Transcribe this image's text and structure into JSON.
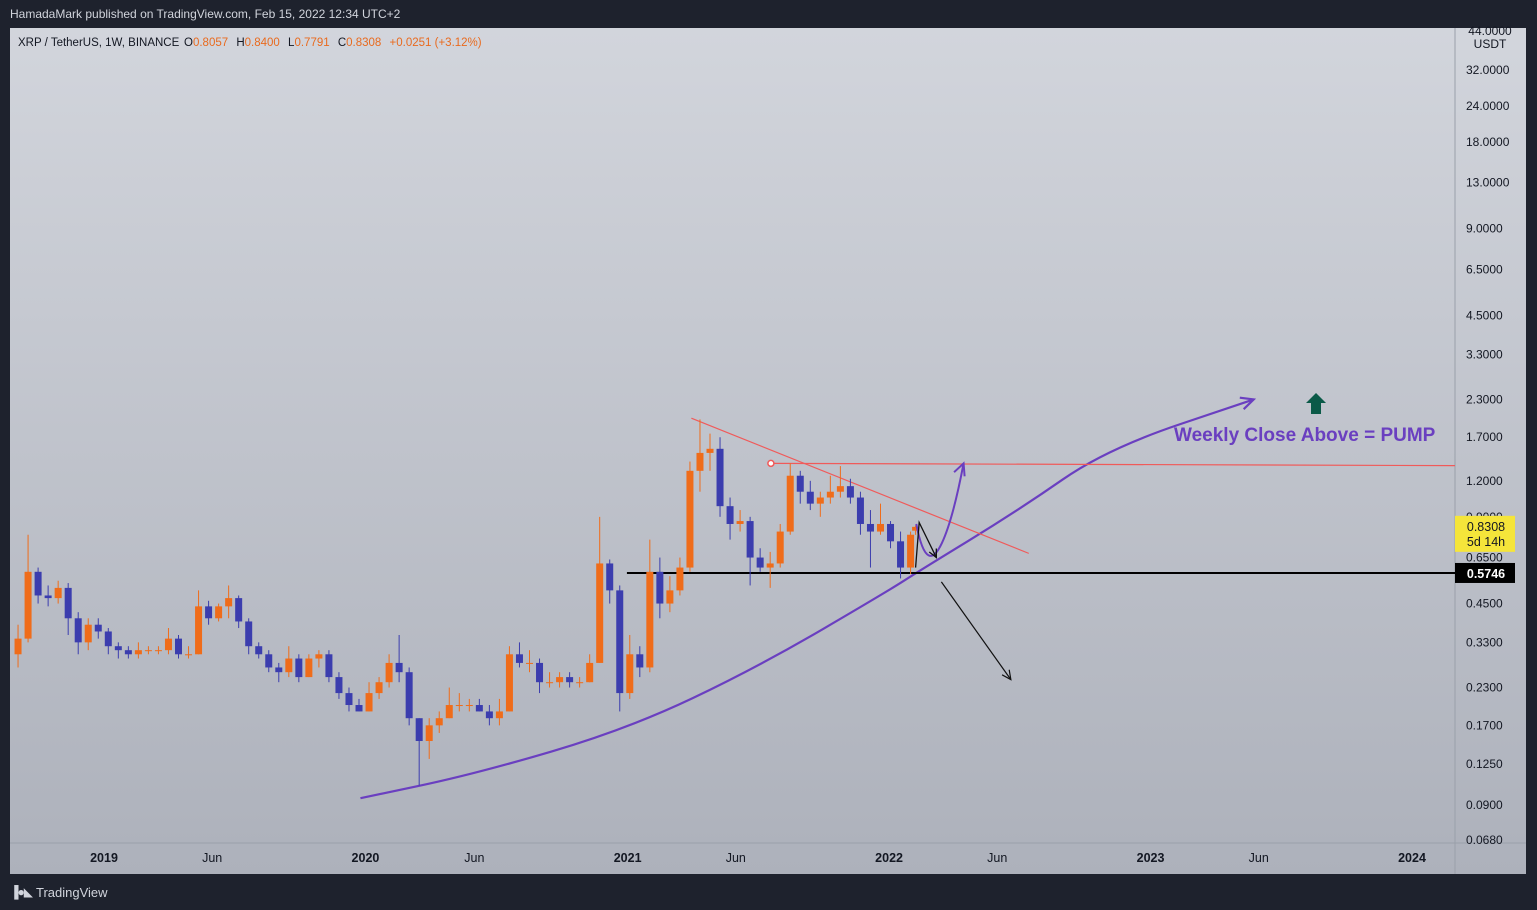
{
  "header": {
    "publisher_line": "HamadaMark published on TradingView.com, Feb 15, 2022 12:34 UTC+2"
  },
  "footer": {
    "brand": "TradingView"
  },
  "colors": {
    "background": "#1e222d",
    "plot_top": "#d2d5dc",
    "plot_bottom": "#adb1bb",
    "up_candle": "#ef6c1a",
    "down_candle": "#3b3dae",
    "annotation_purple": "#6a3fc0",
    "trendline_red": "#f05a5a",
    "price_tag_bg": "#f5e53a",
    "support_tag_bg": "#000000",
    "up_arrow_green": "#0b5a48"
  },
  "chart_data": {
    "type": "candlestick",
    "symbol_line": {
      "name": "XRP / TetherUS, 1W, BINANCE",
      "o_label": "O",
      "o_value": "0.8057",
      "h_label": "H",
      "h_value": "0.8400",
      "l_label": "L",
      "l_value": "0.7791",
      "c_label": "C",
      "c_value": "0.8308",
      "change": "+0.0251 (+3.12%)"
    },
    "y_axis": {
      "scale": "log",
      "unit": "USDT",
      "top_cut_label": "44.0000",
      "ticks": [
        "32.0000",
        "24.0000",
        "18.0000",
        "13.0000",
        "9.0000",
        "6.5000",
        "4.5000",
        "3.3000",
        "2.3000",
        "1.7000",
        "1.2000",
        "0.9000",
        "0.6500",
        "0.4500",
        "0.3300",
        "0.2300",
        "0.1700",
        "0.1250",
        "0.0900",
        "0.0680"
      ],
      "tick_values": [
        32,
        24,
        18,
        13,
        9,
        6.5,
        4.5,
        3.3,
        2.3,
        1.7,
        1.2,
        0.9,
        0.65,
        0.45,
        0.33,
        0.23,
        0.17,
        0.125,
        0.09,
        0.068
      ],
      "range": [
        0.068,
        44
      ]
    },
    "x_axis": {
      "ticks": [
        "2019",
        "Jun",
        "2020",
        "Jun",
        "2021",
        "Jun",
        "2022",
        "Jun",
        "2023",
        "Jun",
        "2024"
      ],
      "tick_dates": [
        "2019-01-01",
        "2019-06-01",
        "2020-01-01",
        "2020-06-01",
        "2021-01-01",
        "2021-06-01",
        "2022-01-01",
        "2022-06-01",
        "2023-01-01",
        "2023-06-01",
        "2024-01-01"
      ],
      "bold": [
        true,
        false,
        true,
        false,
        true,
        false,
        true,
        false,
        true,
        false,
        true
      ],
      "range": [
        "2018-09-01",
        "2024-03-01"
      ]
    },
    "price_tag": {
      "value": "0.8308",
      "countdown": "5d 14h",
      "price": 0.8308
    },
    "support_tag": {
      "value": "0.5746",
      "price": 0.5746
    },
    "annotation_text": "Weekly Close Above = PUMP",
    "drawings": {
      "support_line": {
        "from": "2020-12-31",
        "to": "2024-03-01",
        "price": 0.5746
      },
      "descending_trendline": {
        "from": [
          "2021-03-31",
          1.98
        ],
        "to": [
          "2022-07-15",
          0.672
        ]
      },
      "horizontal_resistance": {
        "from": [
          "2021-07-20",
          1.38
        ],
        "to": [
          "2024-03-01",
          1.355
        ]
      },
      "curve_support": [
        [
          "2019-12-25",
          0.095
        ],
        [
          "2020-06-01",
          0.115
        ],
        [
          "2021-01-01",
          0.165
        ],
        [
          "2021-07-01",
          0.27
        ],
        [
          "2022-01-01",
          0.5
        ],
        [
          "2022-02-10",
          0.58
        ],
        [
          "2022-07-01",
          0.95
        ],
        [
          "2022-11-01",
          1.55
        ],
        [
          "2023-05-25",
          2.3
        ]
      ],
      "scenario_up": [
        [
          "2022-02-08",
          0.85
        ],
        [
          "2022-03-01",
          0.7
        ],
        [
          "2022-04-01",
          0.98
        ],
        [
          "2022-04-15",
          1.38
        ]
      ],
      "scenario_down": [
        [
          "2022-02-07",
          0.6
        ],
        [
          "2022-02-12",
          0.86
        ],
        [
          "2022-03-08",
          0.65
        ]
      ],
      "bearish_arrow": [
        [
          "2022-03-15",
          0.535
        ],
        [
          "2022-06-20",
          0.245
        ]
      ],
      "pump_arrow": {
        "date": "2023-08-20",
        "price": 2.2
      },
      "marker_dot": {
        "date": "2021-07-20",
        "price": 1.38
      }
    },
    "candles": [
      {
        "d": "2018-09-03",
        "o": 0.3,
        "h": 0.38,
        "l": 0.27,
        "c": 0.34
      },
      {
        "d": "2018-09-17",
        "o": 0.34,
        "h": 0.78,
        "l": 0.33,
        "c": 0.58
      },
      {
        "d": "2018-10-01",
        "o": 0.58,
        "h": 0.6,
        "l": 0.45,
        "c": 0.48
      },
      {
        "d": "2018-10-15",
        "o": 0.48,
        "h": 0.52,
        "l": 0.44,
        "c": 0.47
      },
      {
        "d": "2018-10-29",
        "o": 0.47,
        "h": 0.54,
        "l": 0.45,
        "c": 0.51
      },
      {
        "d": "2018-11-12",
        "o": 0.51,
        "h": 0.53,
        "l": 0.35,
        "c": 0.4
      },
      {
        "d": "2018-11-26",
        "o": 0.4,
        "h": 0.42,
        "l": 0.3,
        "c": 0.33
      },
      {
        "d": "2018-12-10",
        "o": 0.33,
        "h": 0.4,
        "l": 0.31,
        "c": 0.38
      },
      {
        "d": "2018-12-24",
        "o": 0.38,
        "h": 0.4,
        "l": 0.34,
        "c": 0.36
      },
      {
        "d": "2019-01-07",
        "o": 0.36,
        "h": 0.37,
        "l": 0.3,
        "c": 0.32
      },
      {
        "d": "2019-01-21",
        "o": 0.32,
        "h": 0.33,
        "l": 0.29,
        "c": 0.31
      },
      {
        "d": "2019-02-04",
        "o": 0.31,
        "h": 0.32,
        "l": 0.29,
        "c": 0.3
      },
      {
        "d": "2019-02-18",
        "o": 0.3,
        "h": 0.33,
        "l": 0.29,
        "c": 0.31
      },
      {
        "d": "2019-03-04",
        "o": 0.31,
        "h": 0.32,
        "l": 0.3,
        "c": 0.31
      },
      {
        "d": "2019-03-18",
        "o": 0.31,
        "h": 0.32,
        "l": 0.3,
        "c": 0.31
      },
      {
        "d": "2019-04-01",
        "o": 0.31,
        "h": 0.37,
        "l": 0.3,
        "c": 0.34
      },
      {
        "d": "2019-04-15",
        "o": 0.34,
        "h": 0.35,
        "l": 0.29,
        "c": 0.3
      },
      {
        "d": "2019-04-29",
        "o": 0.3,
        "h": 0.32,
        "l": 0.29,
        "c": 0.3
      },
      {
        "d": "2019-05-13",
        "o": 0.3,
        "h": 0.5,
        "l": 0.3,
        "c": 0.44
      },
      {
        "d": "2019-05-27",
        "o": 0.44,
        "h": 0.46,
        "l": 0.38,
        "c": 0.4
      },
      {
        "d": "2019-06-10",
        "o": 0.4,
        "h": 0.45,
        "l": 0.39,
        "c": 0.44
      },
      {
        "d": "2019-06-24",
        "o": 0.44,
        "h": 0.52,
        "l": 0.4,
        "c": 0.47
      },
      {
        "d": "2019-07-08",
        "o": 0.47,
        "h": 0.48,
        "l": 0.37,
        "c": 0.39
      },
      {
        "d": "2019-07-22",
        "o": 0.39,
        "h": 0.4,
        "l": 0.3,
        "c": 0.32
      },
      {
        "d": "2019-08-05",
        "o": 0.32,
        "h": 0.33,
        "l": 0.29,
        "c": 0.3
      },
      {
        "d": "2019-08-19",
        "o": 0.3,
        "h": 0.31,
        "l": 0.26,
        "c": 0.27
      },
      {
        "d": "2019-09-02",
        "o": 0.27,
        "h": 0.28,
        "l": 0.24,
        "c": 0.26
      },
      {
        "d": "2019-09-16",
        "o": 0.26,
        "h": 0.32,
        "l": 0.25,
        "c": 0.29
      },
      {
        "d": "2019-09-30",
        "o": 0.29,
        "h": 0.3,
        "l": 0.24,
        "c": 0.25
      },
      {
        "d": "2019-10-14",
        "o": 0.25,
        "h": 0.3,
        "l": 0.25,
        "c": 0.29
      },
      {
        "d": "2019-10-28",
        "o": 0.29,
        "h": 0.31,
        "l": 0.27,
        "c": 0.3
      },
      {
        "d": "2019-11-11",
        "o": 0.3,
        "h": 0.31,
        "l": 0.24,
        "c": 0.25
      },
      {
        "d": "2019-11-25",
        "o": 0.25,
        "h": 0.26,
        "l": 0.21,
        "c": 0.22
      },
      {
        "d": "2019-12-09",
        "o": 0.22,
        "h": 0.23,
        "l": 0.19,
        "c": 0.2
      },
      {
        "d": "2019-12-23",
        "o": 0.2,
        "h": 0.21,
        "l": 0.19,
        "c": 0.19
      },
      {
        "d": "2020-01-06",
        "o": 0.19,
        "h": 0.24,
        "l": 0.19,
        "c": 0.22
      },
      {
        "d": "2020-01-20",
        "o": 0.22,
        "h": 0.25,
        "l": 0.21,
        "c": 0.24
      },
      {
        "d": "2020-02-03",
        "o": 0.24,
        "h": 0.3,
        "l": 0.23,
        "c": 0.28
      },
      {
        "d": "2020-02-17",
        "o": 0.28,
        "h": 0.35,
        "l": 0.24,
        "c": 0.26
      },
      {
        "d": "2020-03-02",
        "o": 0.26,
        "h": 0.27,
        "l": 0.17,
        "c": 0.18
      },
      {
        "d": "2020-03-16",
        "o": 0.18,
        "h": 0.18,
        "l": 0.105,
        "c": 0.15
      },
      {
        "d": "2020-03-30",
        "o": 0.15,
        "h": 0.18,
        "l": 0.13,
        "c": 0.17
      },
      {
        "d": "2020-04-13",
        "o": 0.17,
        "h": 0.19,
        "l": 0.16,
        "c": 0.18
      },
      {
        "d": "2020-04-27",
        "o": 0.18,
        "h": 0.23,
        "l": 0.18,
        "c": 0.2
      },
      {
        "d": "2020-05-11",
        "o": 0.2,
        "h": 0.22,
        "l": 0.19,
        "c": 0.2
      },
      {
        "d": "2020-05-25",
        "o": 0.2,
        "h": 0.21,
        "l": 0.19,
        "c": 0.2
      },
      {
        "d": "2020-06-08",
        "o": 0.2,
        "h": 0.21,
        "l": 0.19,
        "c": 0.19
      },
      {
        "d": "2020-06-22",
        "o": 0.19,
        "h": 0.2,
        "l": 0.17,
        "c": 0.18
      },
      {
        "d": "2020-07-06",
        "o": 0.18,
        "h": 0.21,
        "l": 0.17,
        "c": 0.19
      },
      {
        "d": "2020-07-20",
        "o": 0.19,
        "h": 0.32,
        "l": 0.19,
        "c": 0.3
      },
      {
        "d": "2020-08-03",
        "o": 0.3,
        "h": 0.33,
        "l": 0.27,
        "c": 0.28
      },
      {
        "d": "2020-08-17",
        "o": 0.28,
        "h": 0.31,
        "l": 0.26,
        "c": 0.28
      },
      {
        "d": "2020-08-31",
        "o": 0.28,
        "h": 0.29,
        "l": 0.22,
        "c": 0.24
      },
      {
        "d": "2020-09-14",
        "o": 0.24,
        "h": 0.26,
        "l": 0.23,
        "c": 0.24
      },
      {
        "d": "2020-09-28",
        "o": 0.24,
        "h": 0.26,
        "l": 0.23,
        "c": 0.25
      },
      {
        "d": "2020-10-12",
        "o": 0.25,
        "h": 0.26,
        "l": 0.23,
        "c": 0.24
      },
      {
        "d": "2020-10-26",
        "o": 0.24,
        "h": 0.25,
        "l": 0.23,
        "c": 0.24
      },
      {
        "d": "2020-11-09",
        "o": 0.24,
        "h": 0.3,
        "l": 0.24,
        "c": 0.28
      },
      {
        "d": "2020-11-23",
        "o": 0.28,
        "h": 0.9,
        "l": 0.28,
        "c": 0.62
      },
      {
        "d": "2020-12-07",
        "o": 0.62,
        "h": 0.64,
        "l": 0.45,
        "c": 0.5
      },
      {
        "d": "2020-12-21",
        "o": 0.5,
        "h": 0.52,
        "l": 0.19,
        "c": 0.22
      },
      {
        "d": "2021-01-04",
        "o": 0.22,
        "h": 0.35,
        "l": 0.21,
        "c": 0.3
      },
      {
        "d": "2021-01-18",
        "o": 0.3,
        "h": 0.32,
        "l": 0.25,
        "c": 0.27
      },
      {
        "d": "2021-02-01",
        "o": 0.27,
        "h": 0.75,
        "l": 0.26,
        "c": 0.58
      },
      {
        "d": "2021-02-15",
        "o": 0.58,
        "h": 0.65,
        "l": 0.4,
        "c": 0.45
      },
      {
        "d": "2021-03-01",
        "o": 0.45,
        "h": 0.56,
        "l": 0.42,
        "c": 0.5
      },
      {
        "d": "2021-03-15",
        "o": 0.5,
        "h": 0.65,
        "l": 0.48,
        "c": 0.6
      },
      {
        "d": "2021-03-29",
        "o": 0.6,
        "h": 1.4,
        "l": 0.58,
        "c": 1.3
      },
      {
        "d": "2021-04-12",
        "o": 1.3,
        "h": 1.96,
        "l": 1.1,
        "c": 1.5
      },
      {
        "d": "2021-04-26",
        "o": 1.5,
        "h": 1.75,
        "l": 1.3,
        "c": 1.55
      },
      {
        "d": "2021-05-10",
        "o": 1.55,
        "h": 1.7,
        "l": 0.9,
        "c": 0.98
      },
      {
        "d": "2021-05-24",
        "o": 0.98,
        "h": 1.05,
        "l": 0.75,
        "c": 0.85
      },
      {
        "d": "2021-06-07",
        "o": 0.85,
        "h": 0.95,
        "l": 0.8,
        "c": 0.87
      },
      {
        "d": "2021-06-21",
        "o": 0.87,
        "h": 0.9,
        "l": 0.52,
        "c": 0.65
      },
      {
        "d": "2021-07-05",
        "o": 0.65,
        "h": 0.7,
        "l": 0.58,
        "c": 0.6
      },
      {
        "d": "2021-07-19",
        "o": 0.6,
        "h": 0.68,
        "l": 0.51,
        "c": 0.62
      },
      {
        "d": "2021-08-02",
        "o": 0.62,
        "h": 0.85,
        "l": 0.6,
        "c": 0.8
      },
      {
        "d": "2021-08-16",
        "o": 0.8,
        "h": 1.38,
        "l": 0.78,
        "c": 1.25
      },
      {
        "d": "2021-08-30",
        "o": 1.25,
        "h": 1.3,
        "l": 1.0,
        "c": 1.1
      },
      {
        "d": "2021-09-13",
        "o": 1.1,
        "h": 1.2,
        "l": 0.95,
        "c": 1.0
      },
      {
        "d": "2021-09-27",
        "o": 1.0,
        "h": 1.1,
        "l": 0.9,
        "c": 1.05
      },
      {
        "d": "2021-10-11",
        "o": 1.05,
        "h": 1.25,
        "l": 1.0,
        "c": 1.1
      },
      {
        "d": "2021-10-25",
        "o": 1.1,
        "h": 1.35,
        "l": 1.05,
        "c": 1.15
      },
      {
        "d": "2021-11-08",
        "o": 1.15,
        "h": 1.22,
        "l": 1.0,
        "c": 1.05
      },
      {
        "d": "2021-11-22",
        "o": 1.05,
        "h": 1.1,
        "l": 0.78,
        "c": 0.85
      },
      {
        "d": "2021-12-06",
        "o": 0.85,
        "h": 0.95,
        "l": 0.6,
        "c": 0.8
      },
      {
        "d": "2021-12-20",
        "o": 0.8,
        "h": 1.0,
        "l": 0.78,
        "c": 0.85
      },
      {
        "d": "2022-01-03",
        "o": 0.85,
        "h": 0.87,
        "l": 0.7,
        "c": 0.74
      },
      {
        "d": "2022-01-17",
        "o": 0.74,
        "h": 0.8,
        "l": 0.55,
        "c": 0.6
      },
      {
        "d": "2022-01-31",
        "o": 0.6,
        "h": 0.8,
        "l": 0.57,
        "c": 0.78
      },
      {
        "d": "2022-02-07",
        "o": 0.8057,
        "h": 0.84,
        "l": 0.7791,
        "c": 0.8308
      }
    ]
  }
}
